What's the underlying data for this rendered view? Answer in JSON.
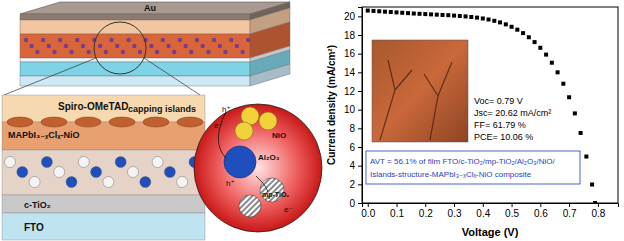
{
  "chart_data": {
    "type": "scatter",
    "x_label": "Voltage (V)",
    "y_label": "Current density (mA/cm²)",
    "x": [
      0,
      0.02,
      0.04,
      0.06,
      0.08,
      0.1,
      0.12,
      0.14,
      0.16,
      0.18,
      0.2,
      0.22,
      0.24,
      0.26,
      0.28,
      0.3,
      0.32,
      0.34,
      0.36,
      0.38,
      0.4,
      0.42,
      0.44,
      0.46,
      0.48,
      0.5,
      0.52,
      0.54,
      0.56,
      0.58,
      0.6,
      0.62,
      0.64,
      0.66,
      0.68,
      0.7,
      0.72,
      0.74,
      0.76,
      0.78,
      0.79
    ],
    "series": [
      {
        "color": "#000000",
        "marker": "square",
        "values": [
          20.62,
          20.58,
          20.54,
          20.5,
          20.46,
          20.42,
          20.38,
          20.34,
          20.3,
          20.27,
          20.24,
          20.21,
          20.18,
          20.15,
          20.12,
          20.08,
          20.04,
          19.99,
          19.93,
          19.86,
          19.77,
          19.66,
          19.52,
          19.35,
          19.14,
          18.88,
          18.57,
          18.2,
          17.76,
          17.24,
          16.63,
          15.9,
          15.03,
          14.0,
          12.78,
          11.33,
          9.6,
          7.5,
          4.98,
          1.98,
          0.0
        ]
      }
    ],
    "xlim": [
      -0.02,
      0.87
    ],
    "ylim": [
      0,
      21
    ],
    "xticks": [
      {
        "value": 0,
        "label": "0.0"
      },
      {
        "value": 0.1,
        "label": "0.1"
      },
      {
        "value": 0.2,
        "label": "0.2"
      },
      {
        "value": 0.3,
        "label": "0.3"
      },
      {
        "value": 0.4,
        "label": "0.4"
      },
      {
        "value": 0.5,
        "label": "0.5"
      },
      {
        "value": 0.6,
        "label": "0.6"
      },
      {
        "value": 0.7,
        "label": "0.7"
      },
      {
        "value": 0.8,
        "label": "0.8"
      }
    ],
    "yticks": [
      0,
      2,
      4,
      6,
      8,
      10,
      12,
      14,
      16,
      18,
      20
    ],
    "grid": false,
    "annotations": [
      "Voc= 0.79 V",
      "Jsc= 20.62 mA/cm²",
      "FF= 61.79 %",
      "PCE= 10.06 %"
    ],
    "caption": [
      "AVT = 56.1% of film FTO/c-TiO₂/mp-TiO₂/Al₂O₃/NiO/",
      "Islands-structure-MAPbI₃₋ₓClₓ-NiO composite"
    ]
  },
  "diagram": {
    "device_top": "Au",
    "inset_labels": [
      "Spiro-OMeTAD",
      "MAPbI₃₋ₓClₓ-NiO",
      "capping islands",
      "c-TiO₂",
      "FTO"
    ],
    "particles": [
      "NiO",
      "Al₂O₃",
      "mp-TiO₂"
    ],
    "carriers": [
      "h⁺",
      "e⁻",
      "h⁺",
      "e⁻"
    ]
  }
}
